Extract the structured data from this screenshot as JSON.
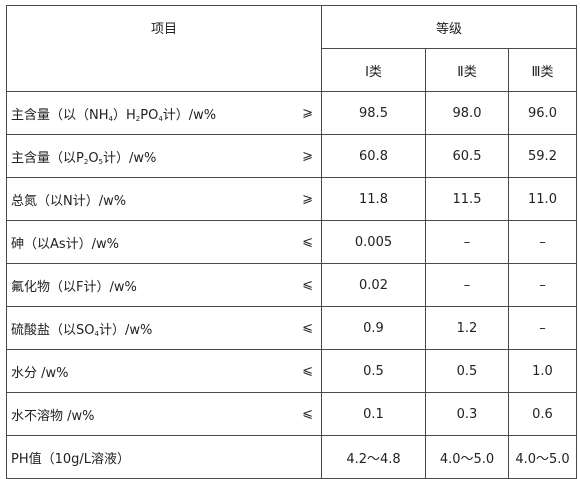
{
  "header": {
    "item_label": "项目",
    "grade_label": "等级",
    "grades": [
      "Ⅰ类",
      "Ⅱ类",
      "Ⅲ类"
    ]
  },
  "rows": [
    {
      "label_parts": [
        "主含量（以（NH",
        "4",
        "）H",
        "2",
        "PO",
        "4",
        "计）/w%"
      ],
      "comparator": "⩾",
      "values": [
        "98.5",
        "98.0",
        "96.0"
      ]
    },
    {
      "label_parts": [
        "主含量（以P",
        "2",
        "O",
        "5",
        "计）/w%"
      ],
      "comparator": "⩾",
      "values": [
        "60.8",
        "60.5",
        "59.2"
      ]
    },
    {
      "label_parts": [
        "总氮（以N计）/w%"
      ],
      "comparator": "⩾",
      "values": [
        "11.8",
        "11.5",
        "11.0"
      ]
    },
    {
      "label_parts": [
        "砷（以As计）/w%"
      ],
      "comparator": "⩽",
      "values": [
        "0.005",
        "–",
        "–"
      ]
    },
    {
      "label_parts": [
        "氟化物（以F计）/w%"
      ],
      "comparator": "⩽",
      "values": [
        "0.02",
        "–",
        "–"
      ]
    },
    {
      "label_parts": [
        "硫酸盐（以SO",
        "4",
        "计）/w%"
      ],
      "comparator": "⩽",
      "values": [
        "0.9",
        "1.2",
        "–"
      ]
    },
    {
      "label_parts": [
        "水分 /w%"
      ],
      "comparator": "⩽",
      "values": [
        "0.5",
        "0.5",
        "1.0"
      ]
    },
    {
      "label_parts": [
        "水不溶物 /w%"
      ],
      "comparator": "⩽",
      "values": [
        "0.1",
        "0.3",
        "0.6"
      ]
    },
    {
      "label_parts": [
        "PH值（10g/L溶液）"
      ],
      "comparator": "",
      "values": [
        "4.2～4.8",
        "4.0～5.0",
        "4.0～5.0"
      ]
    }
  ]
}
